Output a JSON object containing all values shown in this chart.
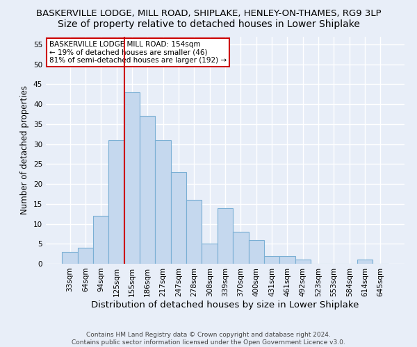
{
  "title1": "BASKERVILLE LODGE, MILL ROAD, SHIPLAKE, HENLEY-ON-THAMES, RG9 3LP",
  "title2": "Size of property relative to detached houses in Lower Shiplake",
  "xlabel": "Distribution of detached houses by size in Lower Shiplake",
  "ylabel": "Number of detached properties",
  "footer1": "Contains HM Land Registry data © Crown copyright and database right 2024.",
  "footer2": "Contains public sector information licensed under the Open Government Licence v3.0.",
  "bar_labels": [
    "33sqm",
    "64sqm",
    "94sqm",
    "125sqm",
    "155sqm",
    "186sqm",
    "217sqm",
    "247sqm",
    "278sqm",
    "308sqm",
    "339sqm",
    "370sqm",
    "400sqm",
    "431sqm",
    "461sqm",
    "492sqm",
    "523sqm",
    "553sqm",
    "584sqm",
    "614sqm",
    "645sqm"
  ],
  "bar_values": [
    3,
    4,
    12,
    31,
    43,
    37,
    31,
    23,
    16,
    5,
    14,
    8,
    6,
    2,
    2,
    1,
    0,
    0,
    0,
    1,
    0
  ],
  "bar_color": "#c5d8ee",
  "bar_edge_color": "#7aafd4",
  "vline_color": "#cc0000",
  "annotation_text": "BASKERVILLE LODGE MILL ROAD: 154sqm\n← 19% of detached houses are smaller (46)\n81% of semi-detached houses are larger (192) →",
  "annotation_box_color": "#ffffff",
  "annotation_box_edge_color": "#cc0000",
  "ylim": [
    0,
    57
  ],
  "yticks": [
    0,
    5,
    10,
    15,
    20,
    25,
    30,
    35,
    40,
    45,
    50,
    55
  ],
  "bg_color": "#e8eef8",
  "plot_bg_color": "#e8eef8",
  "grid_color": "#ffffff",
  "title1_fontsize": 9.5,
  "title2_fontsize": 10,
  "xlabel_fontsize": 9.5,
  "ylabel_fontsize": 8.5,
  "tick_fontsize": 7.5,
  "annotation_fontsize": 7.5,
  "footer_fontsize": 6.5,
  "vline_bar_index": 4
}
